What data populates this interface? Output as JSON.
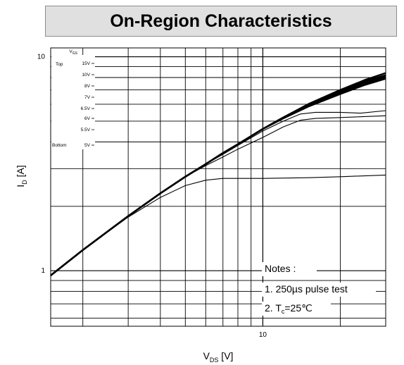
{
  "chart_data": {
    "type": "line",
    "title": "On-Region Characteristics",
    "xlabel_main": "V",
    "xlabel_sub": "DS",
    "xlabel_unit": " [V]",
    "ylabel_main": "I",
    "ylabel_sub": "D",
    "ylabel_unit": " [A]",
    "x_scale": "log",
    "y_scale": "log",
    "xlim": [
      1.5,
      30
    ],
    "ylim": [
      0.55,
      11
    ],
    "x_tick_labels": [
      {
        "value": 10,
        "label": "10"
      }
    ],
    "y_tick_labels": [
      {
        "value": 1,
        "label": "1"
      },
      {
        "value": 10,
        "label": "10"
      }
    ],
    "grid": true,
    "legend": {
      "header": "V",
      "header_sub": "GS",
      "top_label": "Top",
      "bottom_label": "Bottom",
      "entries": [
        "15V",
        "10V",
        "8V",
        "7V",
        "6.5V",
        "6V",
        "5.5V",
        "5V"
      ]
    },
    "notes": {
      "heading": "Notes :",
      "line1": "1. 250µs pulse test",
      "line2_prefix": "2. T",
      "line2_sub": "c",
      "line2_suffix": "=25℃"
    },
    "series": [
      {
        "values": [
          [
            1.5,
            0.95
          ],
          [
            2,
            1.25
          ],
          [
            3,
            1.8
          ],
          [
            4,
            2.3
          ],
          [
            5,
            2.75
          ],
          [
            6,
            3.15
          ],
          [
            7,
            3.55
          ],
          [
            8,
            3.9
          ],
          [
            10,
            4.6
          ],
          [
            12,
            5.2
          ],
          [
            15,
            6.0
          ],
          [
            20,
            7.0
          ],
          [
            25,
            7.8
          ],
          [
            30,
            8.4
          ]
        ]
      },
      {
        "values": [
          [
            1.5,
            0.95
          ],
          [
            2,
            1.25
          ],
          [
            3,
            1.8
          ],
          [
            4,
            2.3
          ],
          [
            5,
            2.75
          ],
          [
            6,
            3.15
          ],
          [
            7,
            3.55
          ],
          [
            8,
            3.9
          ],
          [
            10,
            4.6
          ],
          [
            12,
            5.2
          ],
          [
            15,
            6.0
          ],
          [
            20,
            7.0
          ],
          [
            25,
            7.7
          ],
          [
            30,
            8.2
          ]
        ]
      },
      {
        "values": [
          [
            1.5,
            0.95
          ],
          [
            2,
            1.25
          ],
          [
            3,
            1.8
          ],
          [
            4,
            2.3
          ],
          [
            5,
            2.75
          ],
          [
            6,
            3.15
          ],
          [
            7,
            3.55
          ],
          [
            8,
            3.9
          ],
          [
            10,
            4.6
          ],
          [
            12,
            5.2
          ],
          [
            15,
            5.95
          ],
          [
            20,
            6.9
          ],
          [
            25,
            7.6
          ],
          [
            30,
            8.1
          ]
        ]
      },
      {
        "values": [
          [
            1.5,
            0.95
          ],
          [
            2,
            1.25
          ],
          [
            3,
            1.8
          ],
          [
            4,
            2.3
          ],
          [
            5,
            2.75
          ],
          [
            6,
            3.15
          ],
          [
            7,
            3.55
          ],
          [
            8,
            3.9
          ],
          [
            10,
            4.6
          ],
          [
            12,
            5.2
          ],
          [
            15,
            5.9
          ],
          [
            20,
            6.8
          ],
          [
            25,
            7.5
          ],
          [
            30,
            8.0
          ]
        ]
      },
      {
        "values": [
          [
            1.5,
            0.95
          ],
          [
            2,
            1.25
          ],
          [
            3,
            1.8
          ],
          [
            4,
            2.3
          ],
          [
            5,
            2.75
          ],
          [
            6,
            3.15
          ],
          [
            7,
            3.55
          ],
          [
            8,
            3.9
          ],
          [
            10,
            4.6
          ],
          [
            12,
            5.15
          ],
          [
            15,
            5.85
          ],
          [
            20,
            6.7
          ],
          [
            25,
            7.4
          ],
          [
            30,
            7.9
          ]
        ]
      },
      {
        "values": [
          [
            1.5,
            0.95
          ],
          [
            2,
            1.25
          ],
          [
            3,
            1.8
          ],
          [
            4,
            2.3
          ],
          [
            5,
            2.75
          ],
          [
            6,
            3.15
          ],
          [
            7,
            3.5
          ],
          [
            8,
            3.85
          ],
          [
            10,
            4.5
          ],
          [
            12,
            5.0
          ],
          [
            14,
            5.4
          ],
          [
            16,
            5.5
          ],
          [
            20,
            5.5
          ],
          [
            24,
            5.45
          ],
          [
            30,
            5.6
          ]
        ]
      },
      {
        "values": [
          [
            1.5,
            0.95
          ],
          [
            2,
            1.25
          ],
          [
            3,
            1.8
          ],
          [
            4,
            2.3
          ],
          [
            5,
            2.75
          ],
          [
            6,
            3.1
          ],
          [
            7,
            3.4
          ],
          [
            8,
            3.7
          ],
          [
            10,
            4.2
          ],
          [
            12,
            4.7
          ],
          [
            14,
            5.05
          ],
          [
            16,
            5.15
          ],
          [
            20,
            5.2
          ],
          [
            30,
            5.3
          ]
        ]
      },
      {
        "values": [
          [
            1.5,
            0.95
          ],
          [
            2,
            1.25
          ],
          [
            3,
            1.78
          ],
          [
            4,
            2.2
          ],
          [
            5,
            2.5
          ],
          [
            6,
            2.65
          ],
          [
            7,
            2.7
          ],
          [
            10,
            2.7
          ],
          [
            15,
            2.72
          ],
          [
            20,
            2.75
          ],
          [
            30,
            2.8
          ]
        ]
      }
    ]
  }
}
